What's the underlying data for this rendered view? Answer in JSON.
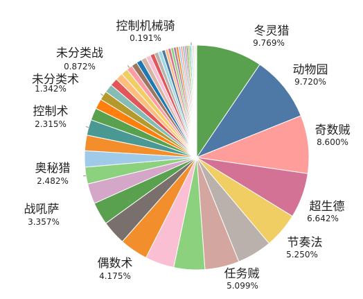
{
  "chart_data": {
    "type": "pie",
    "title": "",
    "slices": [
      {
        "label": "冬灵猎",
        "pct_text": "9.769%",
        "value": 9.769,
        "color": "#59a14f",
        "labeled": true
      },
      {
        "label": "动物园",
        "pct_text": "9.720%",
        "value": 9.72,
        "color": "#4e79a7",
        "labeled": true
      },
      {
        "label": "奇数贼",
        "pct_text": "8.600%",
        "value": 8.6,
        "color": "#ff9d9a",
        "labeled": true
      },
      {
        "label": "超生德",
        "pct_text": "6.642%",
        "value": 6.642,
        "color": "#d37295",
        "labeled": true
      },
      {
        "label": "节奏法",
        "pct_text": "5.250%",
        "value": 5.25,
        "color": "#f1ce63",
        "labeled": true
      },
      {
        "label": "",
        "pct_text": "",
        "value": 5.17,
        "color": "#bab0ac",
        "labeled": false
      },
      {
        "label": "任务贼",
        "pct_text": "5.099%",
        "value": 5.099,
        "color": "#d4a6a0",
        "labeled": true
      },
      {
        "label": "",
        "pct_text": "",
        "value": 4.6,
        "color": "#8cd17d",
        "labeled": false
      },
      {
        "label": "",
        "pct_text": "",
        "value": 4.3,
        "color": "#fabfd2",
        "labeled": false
      },
      {
        "label": "偶数术",
        "pct_text": "4.175%",
        "value": 4.175,
        "color": "#f28e2b",
        "labeled": true
      },
      {
        "label": "",
        "pct_text": "",
        "value": 3.6,
        "color": "#79706e",
        "labeled": false
      },
      {
        "label": "战吼萨",
        "pct_text": "3.357%",
        "value": 3.357,
        "color": "#59a14f",
        "labeled": true
      },
      {
        "label": "",
        "pct_text": "",
        "value": 3.0,
        "color": "#d4a6c8",
        "labeled": false
      },
      {
        "label": "奥秘猎",
        "pct_text": "2.482%",
        "value": 2.482,
        "color": "#8cd17d",
        "labeled": true
      },
      {
        "label": "",
        "pct_text": "",
        "value": 2.4,
        "color": "#a0cbe8",
        "labeled": false
      },
      {
        "label": "",
        "pct_text": "",
        "value": 2.3,
        "color": "#f28e2b",
        "labeled": false
      },
      {
        "label": "控制术",
        "pct_text": "2.315%",
        "value": 2.315,
        "color": "#499894",
        "labeled": true
      },
      {
        "label": "",
        "pct_text": "",
        "value": 1.8,
        "color": "#59a14f",
        "labeled": false
      },
      {
        "label": "",
        "pct_text": "",
        "value": 1.5,
        "color": "#ff7f0e",
        "labeled": false
      },
      {
        "label": "未分类术",
        "pct_text": "1.342%",
        "value": 1.342,
        "color": "#b6992d",
        "labeled": true
      },
      {
        "label": "",
        "pct_text": "",
        "value": 1.25,
        "color": "#86bcb6",
        "labeled": false
      },
      {
        "label": "",
        "pct_text": "",
        "value": 1.15,
        "color": "#e15759",
        "labeled": false
      },
      {
        "label": "",
        "pct_text": "",
        "value": 1.1,
        "color": "#ffbe7d",
        "labeled": false
      },
      {
        "label": "",
        "pct_text": "",
        "value": 1.0,
        "color": "#f1ce63",
        "labeled": false
      },
      {
        "label": "未分类战",
        "pct_text": "0.872%",
        "value": 0.872,
        "color": "#ff9da7",
        "labeled": true
      },
      {
        "label": "",
        "pct_text": "",
        "value": 0.85,
        "color": "#9d7660",
        "labeled": false
      },
      {
        "label": "",
        "pct_text": "",
        "value": 0.8,
        "color": "#1f77b4",
        "labeled": false
      },
      {
        "label": "",
        "pct_text": "",
        "value": 0.75,
        "color": "#d7b5a6",
        "labeled": false
      },
      {
        "label": "",
        "pct_text": "",
        "value": 0.7,
        "color": "#fabfd2",
        "labeled": false
      },
      {
        "label": "",
        "pct_text": "",
        "value": 0.65,
        "color": "#e15759",
        "labeled": false
      },
      {
        "label": "",
        "pct_text": "",
        "value": 0.6,
        "color": "#bab0ac",
        "labeled": false
      },
      {
        "label": "",
        "pct_text": "",
        "value": 0.55,
        "color": "#9edae5",
        "labeled": false
      },
      {
        "label": "",
        "pct_text": "",
        "value": 0.5,
        "color": "#4e79a7",
        "labeled": false
      },
      {
        "label": "",
        "pct_text": "",
        "value": 0.45,
        "color": "#ffbe7d",
        "labeled": false
      },
      {
        "label": "",
        "pct_text": "",
        "value": 0.42,
        "color": "#d37295",
        "labeled": false
      },
      {
        "label": "",
        "pct_text": "",
        "value": 0.4,
        "color": "#8cd17d",
        "labeled": false
      },
      {
        "label": "",
        "pct_text": "",
        "value": 0.38,
        "color": "#b07aa1",
        "labeled": false
      },
      {
        "label": "",
        "pct_text": "",
        "value": 0.35,
        "color": "#f28e2b",
        "labeled": false
      },
      {
        "label": "",
        "pct_text": "",
        "value": 0.32,
        "color": "#a0cbe8",
        "labeled": false
      },
      {
        "label": "",
        "pct_text": "",
        "value": 0.3,
        "color": "#ff9d9a",
        "labeled": false
      },
      {
        "label": "",
        "pct_text": "",
        "value": 0.28,
        "color": "#86bcb6",
        "labeled": false
      },
      {
        "label": "",
        "pct_text": "",
        "value": 0.26,
        "color": "#e377c2",
        "labeled": false
      },
      {
        "label": "",
        "pct_text": "",
        "value": 0.24,
        "color": "#59a14f",
        "labeled": false
      },
      {
        "label": "",
        "pct_text": "",
        "value": 0.22,
        "color": "#bcbd22",
        "labeled": false
      },
      {
        "label": "",
        "pct_text": "",
        "value": 0.2,
        "color": "#17becf",
        "labeled": false
      },
      {
        "label": "控制机械骑",
        "pct_text": "0.191%",
        "value": 0.191,
        "color": "#c7c7c7",
        "labeled": true
      },
      {
        "label": "",
        "pct_text": "",
        "value": 0.18,
        "color": "#aec7e8",
        "labeled": false
      },
      {
        "label": "",
        "pct_text": "",
        "value": 0.16,
        "color": "#ffbb78",
        "labeled": false
      },
      {
        "label": "",
        "pct_text": "",
        "value": 0.14,
        "color": "#98df8a",
        "labeled": false
      },
      {
        "label": "",
        "pct_text": "",
        "value": 0.12,
        "color": "#ff9896",
        "labeled": false
      },
      {
        "label": "",
        "pct_text": "",
        "value": 0.1,
        "color": "#c5b0d5",
        "labeled": false
      }
    ]
  }
}
